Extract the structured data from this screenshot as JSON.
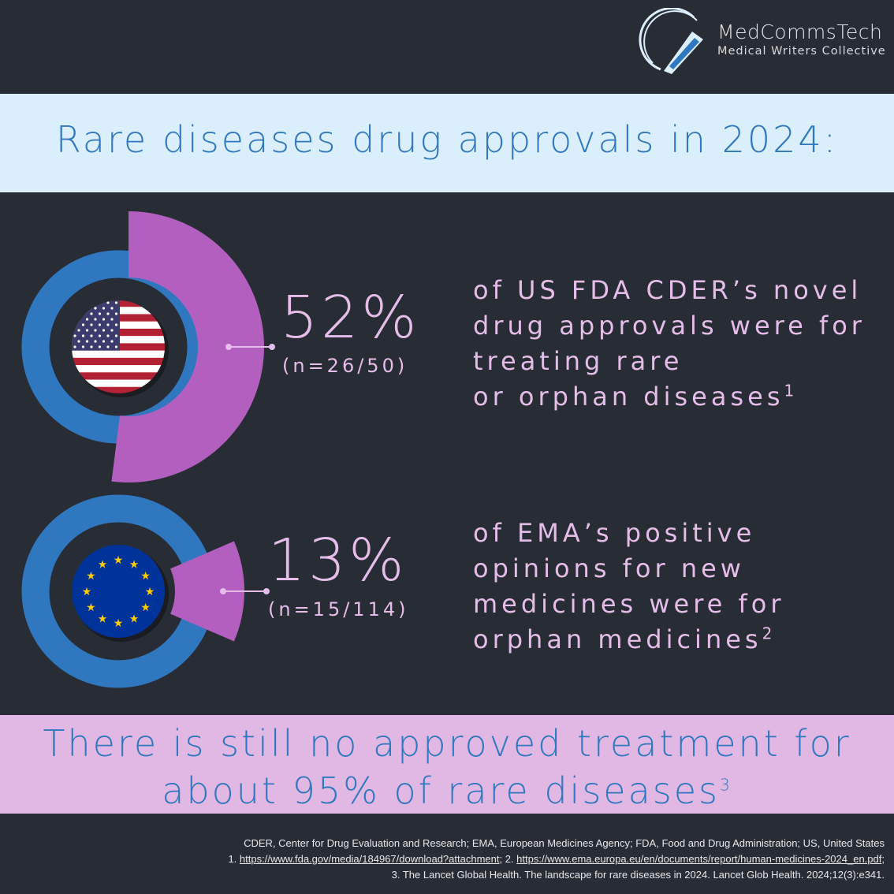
{
  "brand": {
    "name": "MedCommsTech",
    "tagline": "Medical Writers Collective"
  },
  "title": "Rare diseases drug approvals in 2024:",
  "colors": {
    "accent_blue": "#2f78c0",
    "accent_purple": "#b35fc0",
    "background": "#282c34",
    "light_blue_band": "#dbeefb",
    "light_purple_band": "#e0b8e3"
  },
  "stats": [
    {
      "flag": "us-flag-icon",
      "percent": 52,
      "percent_label": "52%",
      "n_label": "(n=26/50)",
      "desc_lines": [
        "of US FDA CDER’s novel",
        "drug approvals were for",
        "treating rare",
        "or orphan diseases"
      ],
      "ref": "1"
    },
    {
      "flag": "eu-flag-icon",
      "percent": 13,
      "percent_label": "13%",
      "n_label": "(n=15/114)",
      "desc_lines": [
        "of EMA’s positive",
        "opinions for new",
        "medicines were for",
        "orphan medicines"
      ],
      "ref": "2"
    }
  ],
  "conclusion": {
    "line1": "There is still no approved treatment for",
    "line2": "about 95% of rare diseases",
    "ref": "3"
  },
  "footer": {
    "abbreviations": "CDER, Center for Drug Evaluation and Research; EMA, European Medicines Agency; FDA, Food and Drug Administration; US, United States",
    "ref1_prefix": "1. ",
    "ref1_link": "https://www.fda.gov/media/184967/download?attachment",
    "ref2_prefix": "; 2. ",
    "ref2_link": "https://www.ema.europa.eu/en/documents/report/human-medicines-2024_en.pdf",
    "ref2_suffix": ";",
    "ref3": "3. The Lancet Global Health. The landscape for rare diseases in 2024. Lancet Glob Health. 2024;12(3):e341."
  }
}
